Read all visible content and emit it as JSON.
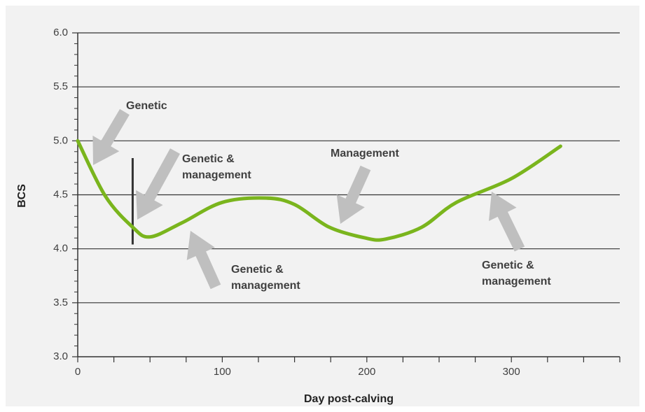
{
  "chart_data": {
    "type": "line",
    "x_label": "Day post-calving",
    "y_label": "BCS",
    "x": [
      0,
      19,
      38,
      50,
      72,
      100,
      130,
      150,
      174,
      199,
      213,
      238,
      262,
      300,
      334
    ],
    "series": [
      {
        "name": "BCS",
        "color": "#7ab51d",
        "values": [
          5.0,
          4.49,
          4.2,
          4.11,
          4.24,
          4.43,
          4.47,
          4.41,
          4.2,
          4.1,
          4.09,
          4.2,
          4.43,
          4.65,
          4.95
        ]
      }
    ],
    "xlim": [
      0,
      375
    ],
    "xticks": [
      0,
      100,
      200,
      300
    ],
    "xminorticks": [
      25,
      50,
      75,
      125,
      150,
      175,
      225,
      250,
      275,
      325,
      350,
      375
    ],
    "ylim": [
      3.0,
      6.0
    ],
    "yticks": [
      {
        "value": 3.0,
        "label": "3.0"
      },
      3.5,
      {
        "value": 4.0,
        "label": "4.0"
      },
      4.5,
      {
        "value": 5.0,
        "label": "5.0"
      },
      5.5,
      {
        "value": 6.0,
        "label": "6.0"
      }
    ],
    "yminorticks": [
      3.1,
      3.2,
      3.3,
      3.4,
      3.6,
      3.7,
      3.8,
      3.9,
      4.1,
      4.2,
      4.3,
      4.4,
      4.6,
      4.7,
      4.8,
      4.9,
      5.1,
      5.2,
      5.3,
      5.4,
      5.6,
      5.7,
      5.8,
      5.9
    ],
    "grid": true,
    "vline": {
      "x": 38,
      "y": [
        4.04,
        4.84
      ]
    },
    "annotations": [
      {
        "lines": [
          "Genetic"
        ]
      },
      {
        "lines": [
          "Genetic &",
          "management"
        ]
      },
      {
        "lines": [
          "Management"
        ]
      },
      {
        "lines": [
          "Genetic &",
          "management"
        ]
      },
      {
        "lines": [
          "Genetic &",
          "management"
        ]
      }
    ]
  }
}
